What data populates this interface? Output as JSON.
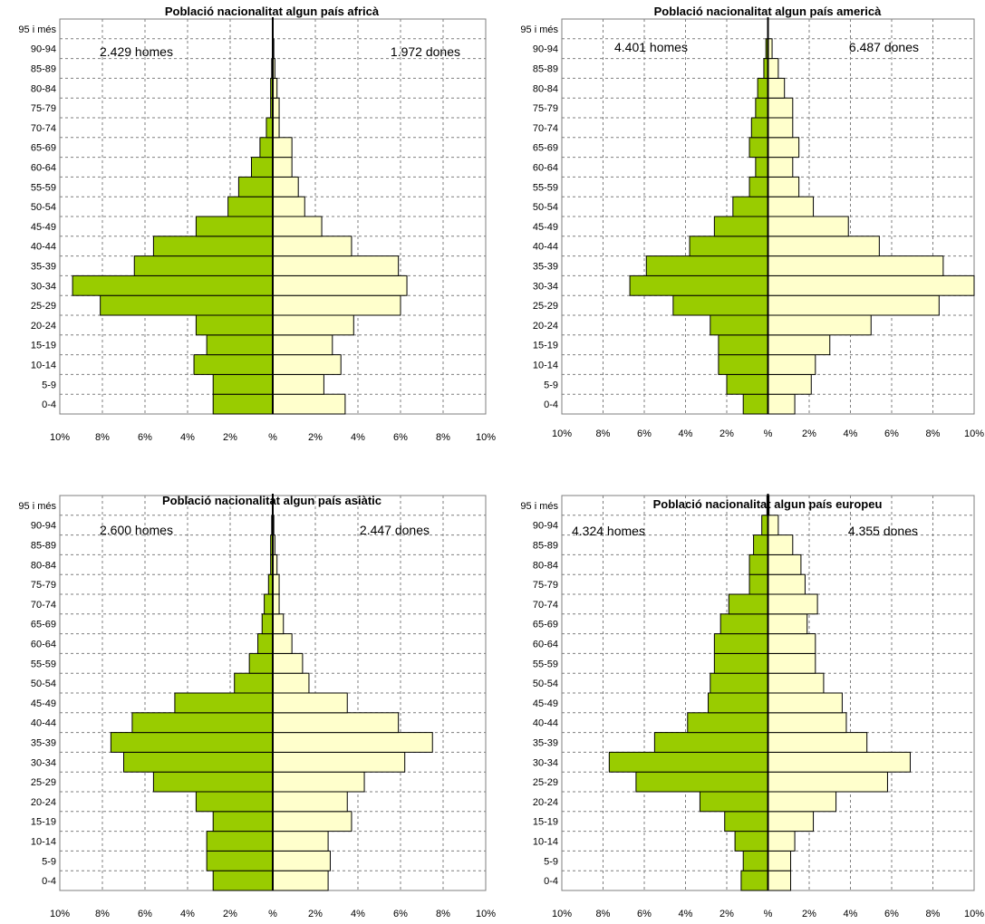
{
  "colors": {
    "men": "#99cc00",
    "women": "#ffffcc",
    "grid": "#7f7f7f",
    "axis": "#000000"
  },
  "chart_data": [
    {
      "type": "bar",
      "orientation": "population-pyramid",
      "title": "Població nacionalitat algun país africà",
      "categories": [
        "0-4",
        "5-9",
        "10-14",
        "15-19",
        "20-24",
        "25-29",
        "30-34",
        "35-39",
        "40-44",
        "45-49",
        "50-54",
        "55-59",
        "60-64",
        "65-69",
        "70-74",
        "75-79",
        "80-84",
        "85-89",
        "90-94",
        "95 i més"
      ],
      "series": [
        {
          "values": [
            2.8,
            2.8,
            3.7,
            3.1,
            3.6,
            8.1,
            9.4,
            6.5,
            5.6,
            3.6,
            2.1,
            1.6,
            1.0,
            0.6,
            0.3,
            0.1,
            0.1,
            0.05,
            0,
            0
          ]
        },
        {
          "values": [
            3.4,
            2.4,
            3.2,
            2.8,
            3.8,
            6.0,
            6.3,
            5.9,
            3.7,
            2.3,
            1.5,
            1.2,
            0.9,
            0.9,
            0.3,
            0.3,
            0.2,
            0.1,
            0.05,
            0
          ]
        }
      ],
      "annotations": {
        "men_total": "2.429 homes",
        "women_total": "1.972 dones"
      },
      "xticks": [
        "10%",
        "8%",
        "6%",
        "4%",
        "2%",
        "%",
        "2%",
        "4%",
        "6%",
        "8%",
        "10%"
      ],
      "xlim": [
        -10,
        10
      ],
      "grid": true
    },
    {
      "type": "bar",
      "orientation": "population-pyramid",
      "title": "Població nacionalitat algun país americà",
      "categories": [
        "0-4",
        "5-9",
        "10-14",
        "15-19",
        "20-24",
        "25-29",
        "30-34",
        "35-39",
        "40-44",
        "45-49",
        "50-54",
        "55-59",
        "60-64",
        "65-69",
        "70-74",
        "75-79",
        "80-84",
        "85-89",
        "90-94",
        "95 i més"
      ],
      "series": [
        {
          "values": [
            1.2,
            2.0,
            2.4,
            2.4,
            2.8,
            4.6,
            6.7,
            5.9,
            3.8,
            2.6,
            1.7,
            0.9,
            0.6,
            0.9,
            0.8,
            0.6,
            0.5,
            0.2,
            0.1,
            0
          ]
        },
        {
          "values": [
            1.3,
            2.1,
            2.3,
            3.0,
            5.0,
            8.3,
            10.0,
            8.5,
            5.4,
            3.9,
            2.2,
            1.5,
            1.2,
            1.5,
            1.2,
            1.2,
            0.8,
            0.5,
            0.2,
            0
          ]
        }
      ],
      "annotations": {
        "men_total": "4.401 homes",
        "women_total": "6.487 dones"
      },
      "xticks": [
        "10%",
        "8%",
        "6%",
        "4%",
        "2%",
        "%",
        "2%",
        "4%",
        "6%",
        "8%",
        "10%"
      ],
      "xlim": [
        -10,
        10
      ],
      "grid": true
    },
    {
      "type": "bar",
      "orientation": "population-pyramid",
      "title": "Població nacionalitat algun país asiàtic",
      "categories": [
        "0-4",
        "5-9",
        "10-14",
        "15-19",
        "20-24",
        "25-29",
        "30-34",
        "35-39",
        "40-44",
        "45-49",
        "50-54",
        "55-59",
        "60-64",
        "65-69",
        "70-74",
        "75-79",
        "80-84",
        "85-89",
        "90-94",
        "95 i més"
      ],
      "series": [
        {
          "values": [
            2.8,
            3.1,
            3.1,
            2.8,
            3.6,
            5.6,
            7.0,
            7.6,
            6.6,
            4.6,
            1.8,
            1.1,
            0.7,
            0.5,
            0.4,
            0.2,
            0.1,
            0.1,
            0.05,
            0
          ]
        },
        {
          "values": [
            2.6,
            2.7,
            2.6,
            3.7,
            3.5,
            4.3,
            6.2,
            7.5,
            5.9,
            3.5,
            1.7,
            1.4,
            0.9,
            0.5,
            0.3,
            0.3,
            0.2,
            0.1,
            0.05,
            0
          ]
        }
      ],
      "annotations": {
        "men_total": "2.600 homes",
        "women_total": "2.447 dones"
      },
      "xticks": [
        "10%",
        "8%",
        "6%",
        "4%",
        "2%",
        "%",
        "2%",
        "4%",
        "6%",
        "8%",
        "10%"
      ],
      "xlim": [
        -10,
        10
      ],
      "grid": true
    },
    {
      "type": "bar",
      "orientation": "population-pyramid",
      "title": "Població nacionalitat algun país europeu",
      "categories": [
        "0-4",
        "5-9",
        "10-14",
        "15-19",
        "20-24",
        "25-29",
        "30-34",
        "35-39",
        "40-44",
        "45-49",
        "50-54",
        "55-59",
        "60-64",
        "65-69",
        "70-74",
        "75-79",
        "80-84",
        "85-89",
        "90-94",
        "95 i més"
      ],
      "series": [
        {
          "values": [
            1.3,
            1.2,
            1.6,
            2.1,
            3.3,
            6.4,
            7.7,
            5.5,
            3.9,
            2.9,
            2.8,
            2.6,
            2.6,
            2.3,
            1.9,
            0.9,
            0.9,
            0.7,
            0.3,
            0.05
          ]
        },
        {
          "values": [
            1.1,
            1.1,
            1.3,
            2.2,
            3.3,
            5.8,
            6.9,
            4.8,
            3.8,
            3.6,
            2.7,
            2.3,
            2.3,
            1.9,
            2.4,
            1.8,
            1.6,
            1.2,
            0.5,
            0.05
          ]
        }
      ],
      "annotations": {
        "men_total": "4.324 homes",
        "women_total": "4.355 dones"
      },
      "xticks": [
        "10%",
        "8%",
        "6%",
        "4%",
        "2%",
        "%",
        "2%",
        "4%",
        "6%",
        "8%",
        "10%"
      ],
      "xlim": [
        -10,
        10
      ],
      "grid": true
    }
  ]
}
